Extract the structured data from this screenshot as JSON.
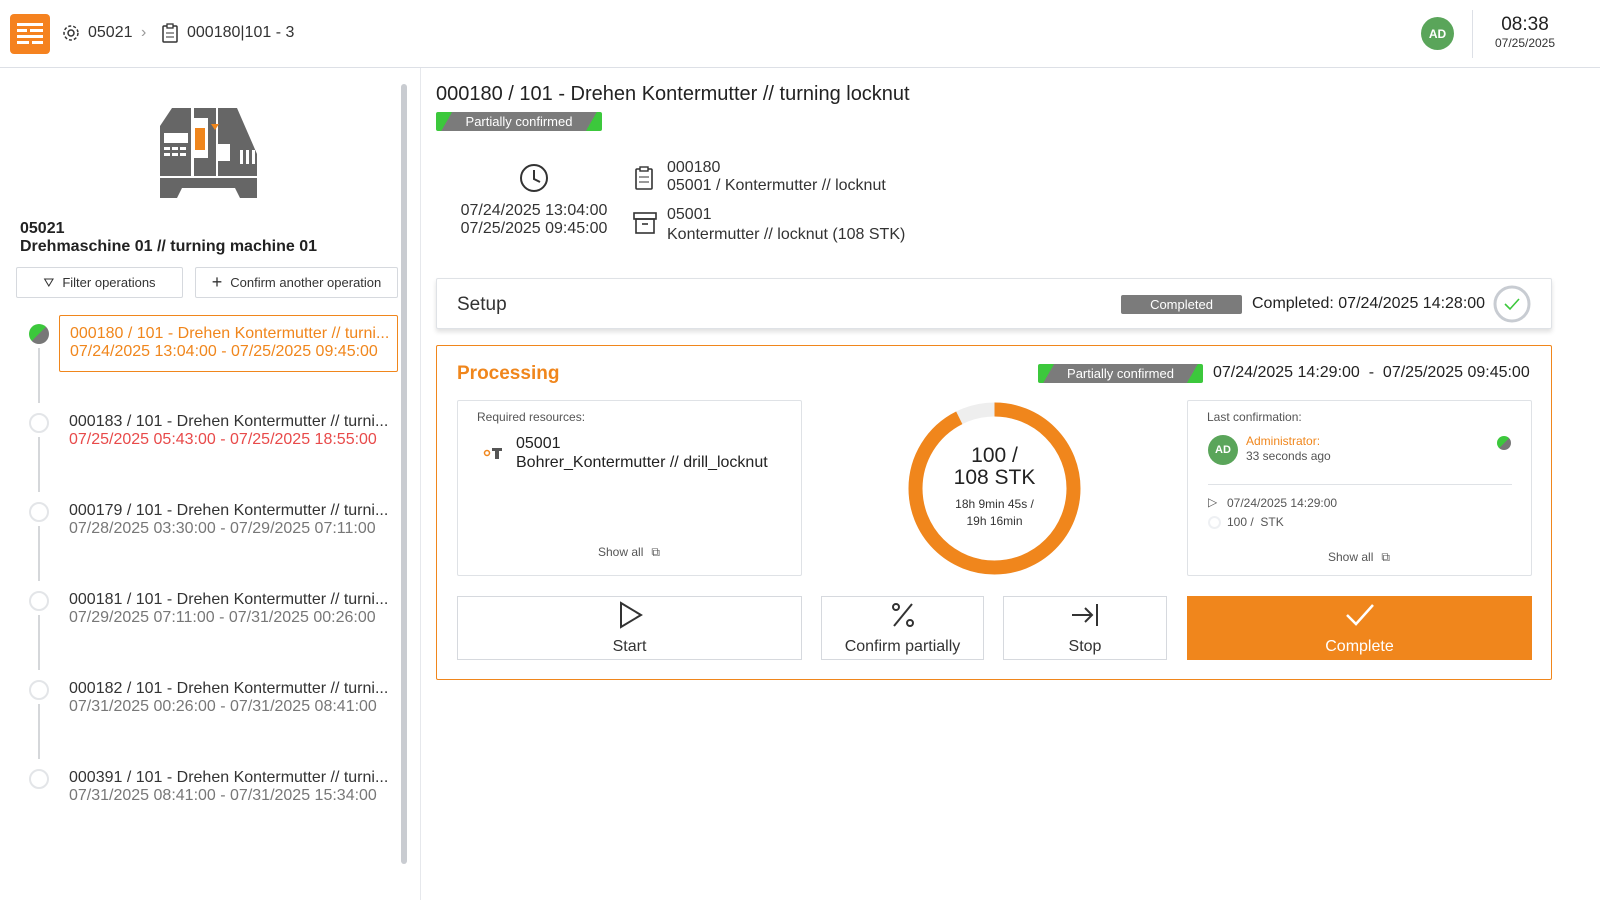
{
  "header": {
    "breadcrumb": [
      {
        "icon": "gear-icon",
        "label": "05021"
      },
      {
        "icon": "clipboard-icon",
        "label": "000180|101 - 3"
      }
    ],
    "avatar": "AD",
    "time": "08:38",
    "date": "07/25/2025"
  },
  "machine": {
    "id": "05021",
    "name": "Drehmaschine 01 // turning machine 01",
    "filter_label": "Filter operations",
    "confirm_another_label": "Confirm another operation"
  },
  "operations": [
    {
      "title": "000180 / 101 - Drehen Kontermutter // turni...",
      "dates": "07/24/2025 13:04:00 - 07/25/2025 09:45:00",
      "status": "partially-confirmed",
      "active": true
    },
    {
      "title": "000183 / 101 - Drehen Kontermutter // turni...",
      "dates": "07/25/2025 05:43:00 - 07/25/2025 18:55:00",
      "late": true
    },
    {
      "title": "000179 / 101 - Drehen Kontermutter // turni...",
      "dates": "07/28/2025 03:30:00 - 07/29/2025 07:11:00"
    },
    {
      "title": "000181 / 101 - Drehen Kontermutter // turni...",
      "dates": "07/29/2025 07:11:00 - 07/31/2025 00:26:00"
    },
    {
      "title": "000182 / 101 - Drehen Kontermutter // turni...",
      "dates": "07/31/2025 00:26:00 - 07/31/2025 08:41:00"
    },
    {
      "title": "000391 / 101 - Drehen Kontermutter // turni...",
      "dates": "07/31/2025 08:41:00 - 07/31/2025 15:34:00"
    }
  ],
  "detail": {
    "title": "000180 / 101 - Drehen Kontermutter // turning locknut",
    "status": "Partially confirmed",
    "start": "07/24/2025 13:04:00",
    "end": "07/25/2025 09:45:00",
    "order_id": "000180",
    "order_desc": "05001 / Kontermutter // locknut",
    "material_id": "05001",
    "material_desc": "Kontermutter // locknut (108 STK)"
  },
  "setup": {
    "title": "Setup",
    "status": "Completed",
    "completed_text": "Completed: 07/24/2025 14:28:00"
  },
  "processing": {
    "title": "Processing",
    "status": "Partially confirmed",
    "start": "07/24/2025 14:29:00",
    "sep": "-",
    "end": "07/25/2025 09:45:00",
    "resources_label": "Required resources:",
    "resource_id": "05001",
    "resource_name": "Bohrer_Kontermutter // drill_locknut",
    "show_all": "Show all",
    "qty_line1": "100 /",
    "qty_line2": "108 STK",
    "time_line1": "18h 9min 45s /",
    "time_line2": "19h 16min",
    "progress": 0.926,
    "last_conf_label": "Last confirmation:",
    "user_initials": "AD",
    "user": "Administrator:",
    "ago": "33 seconds ago",
    "conf_start": "07/24/2025 14:29:00",
    "conf_qty": "100 /  STK",
    "show_all2": "Show all",
    "buttons": {
      "start": "Start",
      "confirm_partially": "Confirm partially",
      "stop": "Stop",
      "complete": "Complete"
    }
  },
  "colors": {
    "accent": "#f0861c",
    "green": "#3cc83c",
    "gray_badge": "#7b7b7b",
    "late": "#e84a4a"
  }
}
